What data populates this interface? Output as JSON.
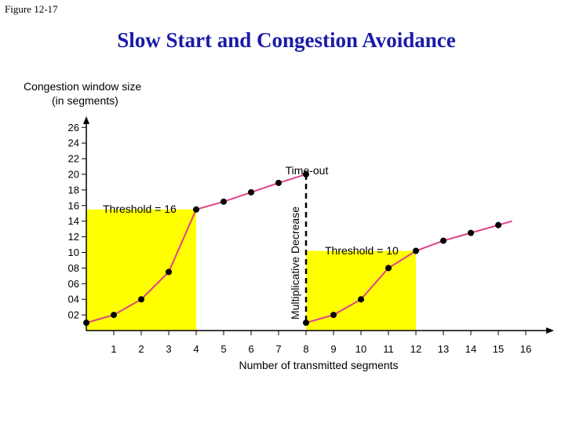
{
  "figure_label": "Figure  12-17",
  "title": "Slow Start and Congestion Avoidance",
  "chart_data": {
    "type": "line",
    "ylabel_line1": "Congestion window size",
    "ylabel_line2": "(in segments)",
    "xlabel": "Number of transmitted segments",
    "xlim": [
      0,
      16
    ],
    "ylim": [
      0,
      26
    ],
    "x_ticks": [
      "1",
      "2",
      "3",
      "4",
      "5",
      "6",
      "7",
      "8",
      "9",
      "10",
      "11",
      "12",
      "13",
      "14",
      "15",
      "16"
    ],
    "y_ticks": [
      "02",
      "04",
      "06",
      "08",
      "10",
      "12",
      "14",
      "16",
      "18",
      "20",
      "22",
      "24",
      "26"
    ],
    "series": [
      {
        "x": [
          0,
          1,
          2,
          3,
          4,
          5,
          6,
          7,
          8
        ],
        "y": [
          1,
          2,
          4,
          7.5,
          15.5,
          16.5,
          17.7,
          18.9,
          20
        ]
      },
      {
        "x": [
          8,
          9,
          10,
          11,
          12,
          13,
          14,
          15,
          15.5
        ],
        "y": [
          1,
          2,
          4,
          8,
          10.2,
          11.5,
          12.5,
          13.5,
          14
        ]
      }
    ],
    "thresholds": [
      {
        "label": "Threshold = 16",
        "x0": 0,
        "x1": 4,
        "y": 15.5
      },
      {
        "label": "Threshold = 10",
        "x0": 8,
        "x1": 12,
        "y": 10.2
      }
    ],
    "timeout_label": "Time-out",
    "decrease_label": "Multiplicative Decrease",
    "timeout_x": 8,
    "colors": {
      "line": "#e0408a",
      "point": "#000000",
      "threshold_fill": "#ffff00",
      "title": "#1a1aa8"
    }
  }
}
